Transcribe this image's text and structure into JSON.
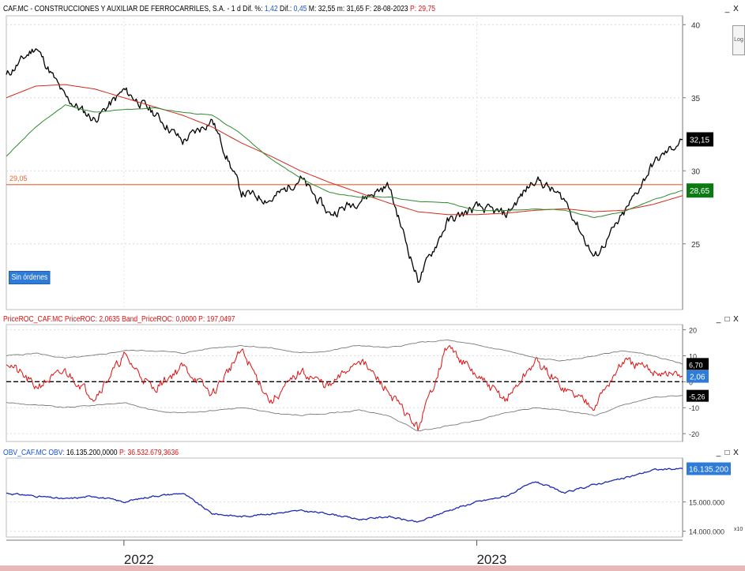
{
  "main_pane": {
    "header": {
      "title": "CAF.MC - CONSTRUCCIONES Y AUXILIAR DE FERROCARRILES, S.A. - 1 d",
      "dif_pct_label": "Dif. %:",
      "dif_pct_value": "1,42",
      "dif_label": "Dif.:",
      "dif_value": "0,45",
      "max_label": "M:",
      "max_value": "32,55",
      "min_label": "m:",
      "min_value": "31,65",
      "date_label": "F:",
      "date_value": "28-08-2023",
      "p_label": "P:",
      "p_value": "29,75"
    },
    "log_button": "Log",
    "orders_button": "Sin órdenes",
    "price_tag": "32,15",
    "ma_tag": "28,65",
    "hline_label": "29,05"
  },
  "roc_pane": {
    "header": {
      "name": "PriceROC_CAF.MC",
      "roc_label": "PriceROC:",
      "roc_value": "2,0635",
      "band_label": "Band_PriceROC:",
      "band_value": "0,0000",
      "p_label": "P:",
      "p_value": "197,0497"
    },
    "tag_upper": "6,70",
    "tag_value": "2,06",
    "tag_lower": "-5,26"
  },
  "obv_pane": {
    "header": {
      "name": "OBV_CAF.MC",
      "obv_label": "OBV:",
      "obv_value": "16.135.200,0000",
      "p_label": "P:",
      "p_value": "36.532.679,3636"
    },
    "tag_value": "16.135.200",
    "x10_label": "x10"
  },
  "window_controls": {
    "minimize": "_",
    "maximize": "□",
    "close": "X"
  },
  "colors": {
    "price": "#000000",
    "ma_slow": "#d42a1e",
    "ma_fast": "#2e8b2e",
    "hline": "#e8622a",
    "roc": "#e01010",
    "band": "#7a7a7a",
    "obv": "#1d2ab4",
    "price_tag_bg": "#000000",
    "ma_tag_bg": "#0b7a12",
    "value_tag_bg": "#2f7bd8"
  },
  "chart_data": [
    {
      "type": "line",
      "title": "",
      "x": [
        "2021-09",
        "2021-10",
        "2021-11",
        "2021-12",
        "2022-01",
        "2022-02",
        "2022-03",
        "2022-04",
        "2022-05",
        "2022-06",
        "2022-07",
        "2022-08",
        "2022-09",
        "2022-10",
        "2022-11",
        "2022-12",
        "2023-01",
        "2023-02",
        "2023-03",
        "2023-04",
        "2023-05",
        "2023-06",
        "2023-07",
        "2023-08"
      ],
      "series": [
        {
          "name": "",
          "role": "price",
          "values": [
            36.5,
            38.5,
            35.0,
            33.5,
            35.5,
            34.0,
            32.0,
            33.5,
            28.5,
            28.0,
            29.5,
            27.0,
            28.0,
            29.0,
            22.5,
            26.5,
            27.5,
            27.0,
            29.5,
            28.0,
            24.0,
            27.0,
            30.5,
            32.15
          ]
        },
        {
          "name": "",
          "role": "ma_slow",
          "values": [
            35.0,
            35.8,
            35.9,
            35.6,
            35.0,
            34.4,
            33.8,
            33.0,
            31.9,
            31.0,
            30.0,
            29.2,
            28.5,
            27.8,
            27.2,
            27.0,
            27.0,
            27.1,
            27.3,
            27.4,
            27.2,
            27.3,
            27.7,
            28.3
          ]
        },
        {
          "name": "",
          "role": "ma_fast",
          "values": [
            31.0,
            33.0,
            34.5,
            34.0,
            34.2,
            34.3,
            34.0,
            33.8,
            32.5,
            30.8,
            29.5,
            28.5,
            28.2,
            28.2,
            27.9,
            27.8,
            27.3,
            27.3,
            27.4,
            27.3,
            26.8,
            27.2,
            28.0,
            28.65
          ]
        }
      ],
      "hlines": [
        29.05
      ],
      "ylim": [
        20.5,
        40.5
      ],
      "yticks": [
        25,
        30,
        35,
        40
      ],
      "xticks": [
        {
          "label": "2022",
          "x": "2022-01"
        },
        {
          "label": "2023",
          "x": "2023-01"
        }
      ],
      "grid": true
    },
    {
      "type": "line",
      "title": "",
      "x": [
        "2021-09",
        "2021-10",
        "2021-11",
        "2021-12",
        "2022-01",
        "2022-02",
        "2022-03",
        "2022-04",
        "2022-05",
        "2022-06",
        "2022-07",
        "2022-08",
        "2022-09",
        "2022-10",
        "2022-11",
        "2022-12",
        "2023-01",
        "2023-02",
        "2023-03",
        "2023-04",
        "2023-05",
        "2023-06",
        "2023-07",
        "2023-08"
      ],
      "series": [
        {
          "name": "",
          "role": "roc",
          "values": [
            8,
            -2,
            4,
            -6,
            10,
            -3,
            6,
            -5,
            12,
            -8,
            4,
            -2,
            9,
            -4,
            -18,
            14,
            2,
            -7,
            8,
            -3,
            -9,
            8,
            4,
            2.06
          ]
        },
        {
          "name": "",
          "role": "band_upper",
          "values": [
            10,
            11,
            9,
            10,
            12,
            12,
            11,
            13,
            14,
            13,
            11,
            12,
            14,
            13,
            15,
            16,
            14,
            12,
            9,
            8,
            10,
            12,
            10,
            6.7
          ]
        },
        {
          "name": "",
          "role": "band_lower",
          "values": [
            -8,
            -9,
            -10,
            -9,
            -8,
            -11,
            -12,
            -11,
            -10,
            -12,
            -13,
            -12,
            -11,
            -13,
            -19,
            -17,
            -15,
            -12,
            -10,
            -11,
            -13,
            -9,
            -6,
            -5.26
          ]
        }
      ],
      "ylim": [
        -23,
        22
      ],
      "yticks": [
        -20,
        -10,
        0,
        10,
        20
      ],
      "grid": true
    },
    {
      "type": "line",
      "title": "",
      "x": [
        "2021-09",
        "2021-10",
        "2021-11",
        "2021-12",
        "2022-01",
        "2022-02",
        "2022-03",
        "2022-04",
        "2022-05",
        "2022-06",
        "2022-07",
        "2022-08",
        "2022-09",
        "2022-10",
        "2022-11",
        "2022-12",
        "2023-01",
        "2023-02",
        "2023-03",
        "2023-04",
        "2023-05",
        "2023-06",
        "2023-07",
        "2023-08"
      ],
      "series": [
        {
          "name": "",
          "role": "obv",
          "values": [
            15.3,
            15.2,
            15.1,
            15.2,
            15.0,
            15.2,
            15.3,
            14.6,
            14.5,
            14.6,
            14.7,
            14.6,
            14.4,
            14.5,
            14.3,
            14.7,
            15.0,
            15.2,
            15.7,
            15.3,
            15.6,
            15.8,
            16.1,
            16.135
          ]
        }
      ],
      "ylim": [
        13.8,
        16.5
      ],
      "yticks": [
        14,
        15
      ],
      "ytick_labels": [
        "14.000.000",
        "15.000.000"
      ],
      "grid": true
    }
  ]
}
